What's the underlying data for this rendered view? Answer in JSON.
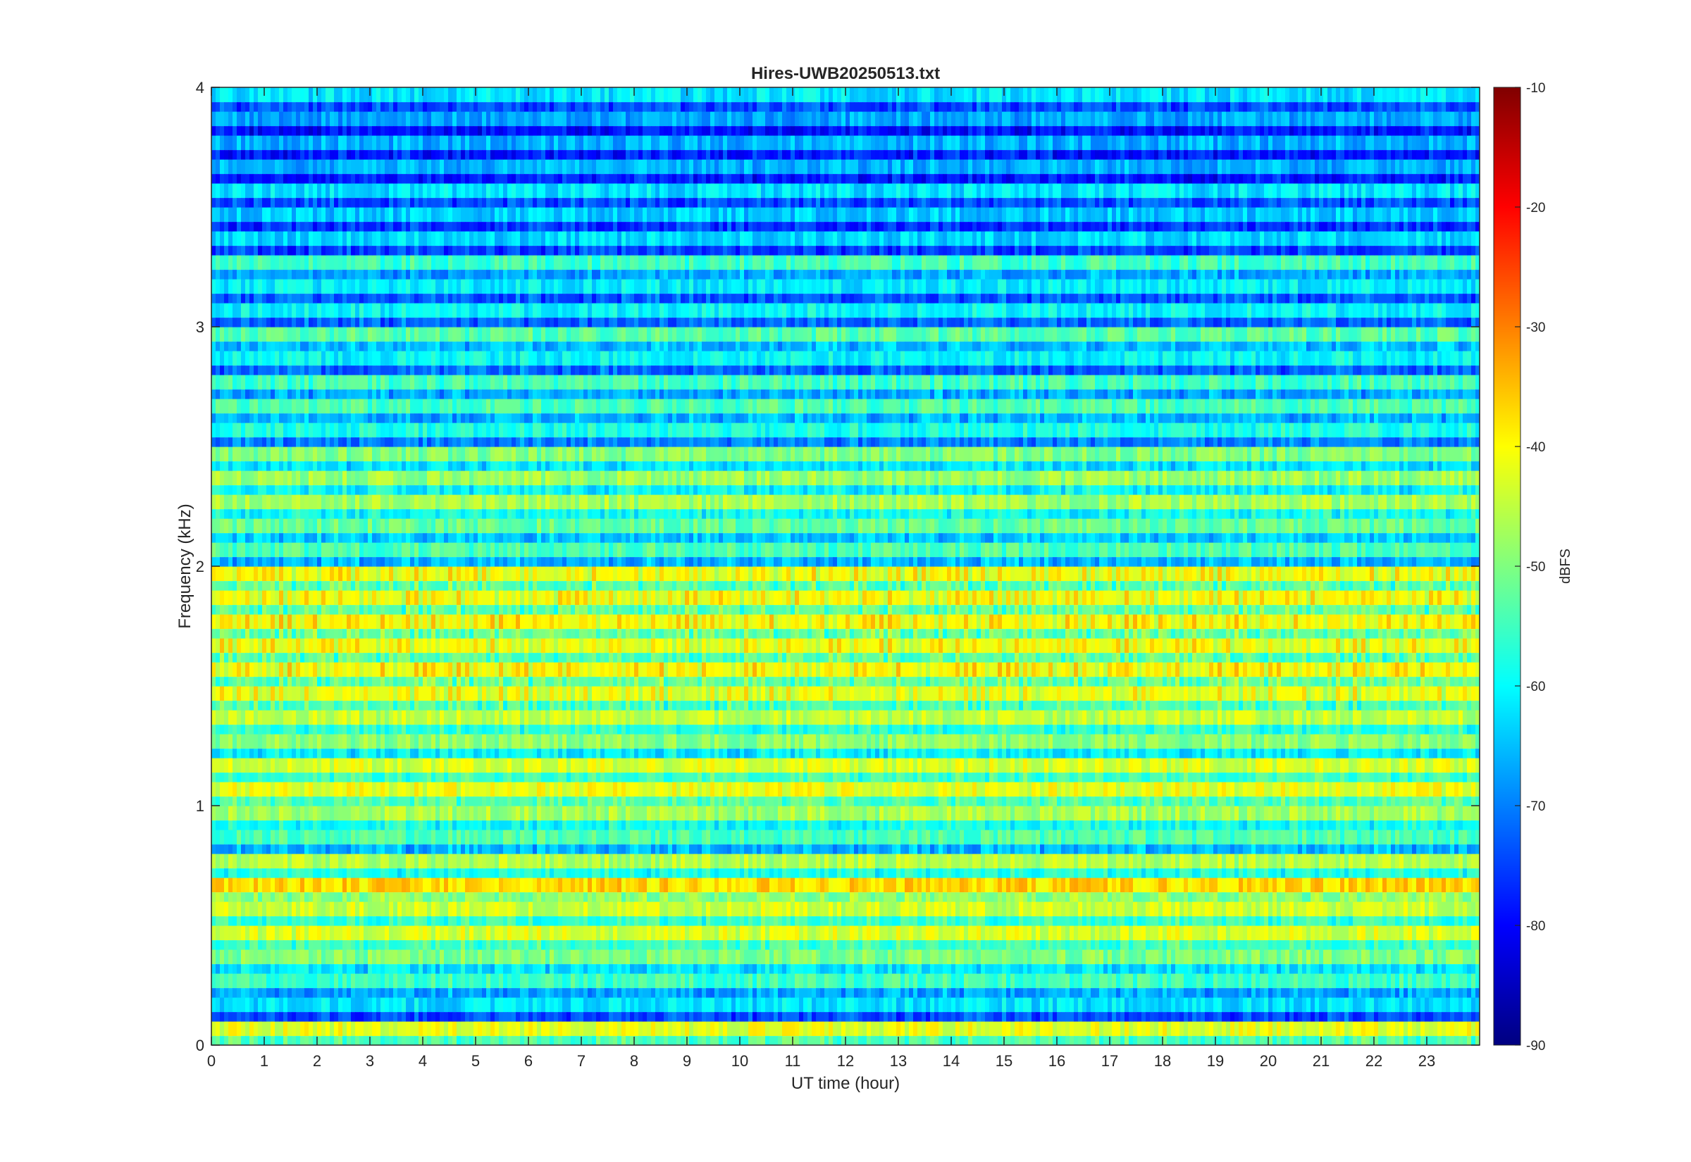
{
  "chart_data": {
    "type": "heatmap",
    "title": "Hires-UWB20250513.txt",
    "xlabel": "UT time (hour)",
    "ylabel": "Frequency (kHz)",
    "xlim": [
      0,
      24
    ],
    "ylim": [
      0,
      4
    ],
    "x_ticks": [
      "0",
      "1",
      "2",
      "3",
      "4",
      "5",
      "6",
      "7",
      "8",
      "9",
      "10",
      "11",
      "12",
      "13",
      "14",
      "15",
      "16",
      "17",
      "18",
      "19",
      "20",
      "21",
      "22",
      "23"
    ],
    "y_ticks": [
      "0",
      "1",
      "2",
      "3",
      "4"
    ],
    "colorbar": {
      "label": "dBFS",
      "range": [
        -90,
        -10
      ],
      "ticks": [
        "-10",
        "-20",
        "-30",
        "-40",
        "-50",
        "-60",
        "-70",
        "-80",
        "-90"
      ],
      "colormap": "jet"
    },
    "approx_band_levels_dbfs": [
      {
        "freq_khz": 0.05,
        "level": -42
      },
      {
        "freq_khz": 0.15,
        "level": -62
      },
      {
        "freq_khz": 0.25,
        "level": -55
      },
      {
        "freq_khz": 0.35,
        "level": -50
      },
      {
        "freq_khz": 0.45,
        "level": -43
      },
      {
        "freq_khz": 0.55,
        "level": -44
      },
      {
        "freq_khz": 0.65,
        "level": -37
      },
      {
        "freq_khz": 0.75,
        "level": -46
      },
      {
        "freq_khz": 0.85,
        "level": -54
      },
      {
        "freq_khz": 0.95,
        "level": -47
      },
      {
        "freq_khz": 1.05,
        "level": -42
      },
      {
        "freq_khz": 1.15,
        "level": -43
      },
      {
        "freq_khz": 1.25,
        "level": -49
      },
      {
        "freq_khz": 1.35,
        "level": -45
      },
      {
        "freq_khz": 1.45,
        "level": -44
      },
      {
        "freq_khz": 1.55,
        "level": -42
      },
      {
        "freq_khz": 1.65,
        "level": -43
      },
      {
        "freq_khz": 1.75,
        "level": -42
      },
      {
        "freq_khz": 1.85,
        "level": -43
      },
      {
        "freq_khz": 1.95,
        "level": -43
      },
      {
        "freq_khz": 2.05,
        "level": -54
      },
      {
        "freq_khz": 2.15,
        "level": -52
      },
      {
        "freq_khz": 2.25,
        "level": -47
      },
      {
        "freq_khz": 2.35,
        "level": -48
      },
      {
        "freq_khz": 2.45,
        "level": -50
      },
      {
        "freq_khz": 2.55,
        "level": -58
      },
      {
        "freq_khz": 2.65,
        "level": -54
      },
      {
        "freq_khz": 2.75,
        "level": -55
      },
      {
        "freq_khz": 2.85,
        "level": -60
      },
      {
        "freq_khz": 2.95,
        "level": -53
      },
      {
        "freq_khz": 3.05,
        "level": -60
      },
      {
        "freq_khz": 3.15,
        "level": -61
      },
      {
        "freq_khz": 3.25,
        "level": -55
      },
      {
        "freq_khz": 3.35,
        "level": -63
      },
      {
        "freq_khz": 3.45,
        "level": -64
      },
      {
        "freq_khz": 3.55,
        "level": -62
      },
      {
        "freq_khz": 3.65,
        "level": -66
      },
      {
        "freq_khz": 3.75,
        "level": -66
      },
      {
        "freq_khz": 3.85,
        "level": -67
      },
      {
        "freq_khz": 3.95,
        "level": -62
      }
    ]
  }
}
